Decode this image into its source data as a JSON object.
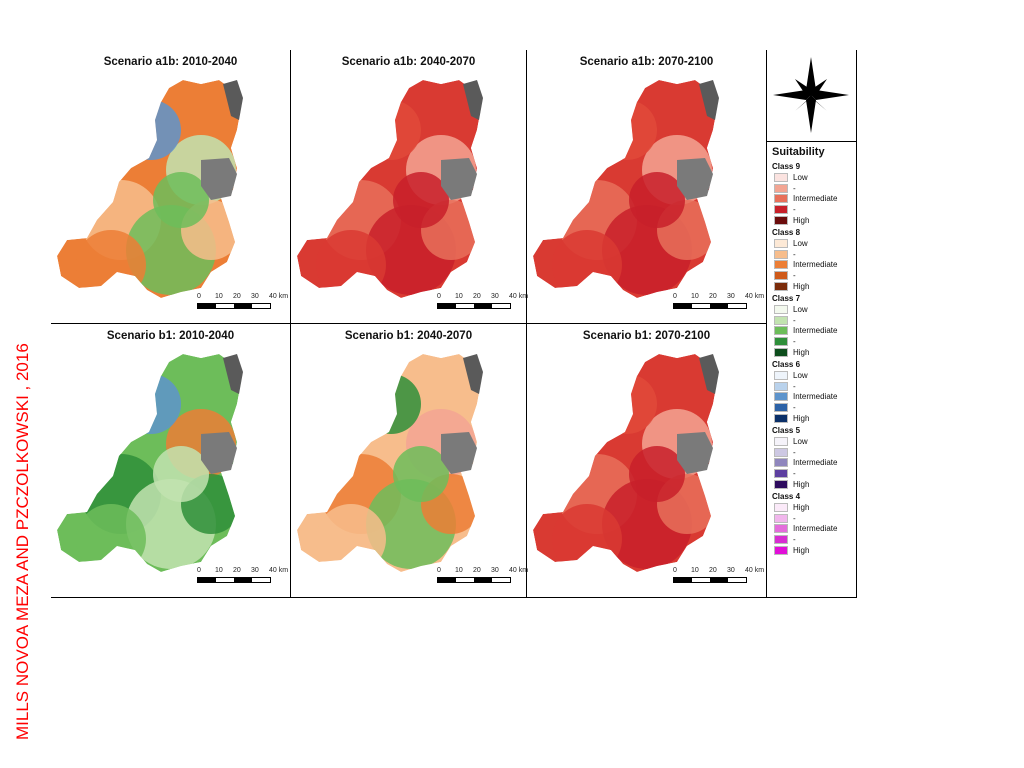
{
  "caption": "MILLS NOVOA MEZA AND PZCZOLKOWSKI , 2016",
  "panels": [
    {
      "title": "Scenario a1b: 2010-2040",
      "palette": "a1b_early"
    },
    {
      "title": "Scenario a1b: 2040-2070",
      "palette": "red"
    },
    {
      "title": "Scenario a1b: 2070-2100",
      "palette": "red"
    },
    {
      "title": "Scenario b1: 2010-2040",
      "palette": "b1_early"
    },
    {
      "title": "Scenario b1: 2040-2070",
      "palette": "b1_mid"
    },
    {
      "title": "Scenario b1: 2070-2100",
      "palette": "red"
    }
  ],
  "scale_bar": {
    "ticks": [
      "0",
      "10",
      "20",
      "30",
      "40 km"
    ]
  },
  "legend": {
    "title": "Suitability",
    "classes": [
      {
        "name": "Class 9",
        "items": [
          {
            "label": "Low",
            "color": "#fbe3e0"
          },
          {
            "label": "-",
            "color": "#f3a593"
          },
          {
            "label": "Intermediate",
            "color": "#e8705a"
          },
          {
            "label": "-",
            "color": "#c8202a"
          },
          {
            "label": "High",
            "color": "#6b0c0c"
          }
        ]
      },
      {
        "name": "Class 8",
        "items": [
          {
            "label": "Low",
            "color": "#fde9d6"
          },
          {
            "label": "-",
            "color": "#f7bd8c"
          },
          {
            "label": "Intermediate",
            "color": "#ec7e36"
          },
          {
            "label": "-",
            "color": "#cf5a1a"
          },
          {
            "label": "High",
            "color": "#7a2b0a"
          }
        ]
      },
      {
        "name": "Class 7",
        "items": [
          {
            "label": "Low",
            "color": "#f3f9ee"
          },
          {
            "label": "-",
            "color": "#c2e3b0"
          },
          {
            "label": "Intermediate",
            "color": "#6dbd5a"
          },
          {
            "label": "-",
            "color": "#2f8f3a"
          },
          {
            "label": "High",
            "color": "#0d4d1c"
          }
        ]
      },
      {
        "name": "Class 6",
        "items": [
          {
            "label": "Low",
            "color": "#eef4fb"
          },
          {
            "label": "-",
            "color": "#b9d2ec"
          },
          {
            "label": "Intermediate",
            "color": "#5e94cc"
          },
          {
            "label": "-",
            "color": "#2c62a7"
          },
          {
            "label": "High",
            "color": "#0a2f68"
          }
        ]
      },
      {
        "name": "Class 5",
        "items": [
          {
            "label": "Low",
            "color": "#f5f3fa"
          },
          {
            "label": "-",
            "color": "#cdc8e3"
          },
          {
            "label": "Intermediate",
            "color": "#8f86bd"
          },
          {
            "label": "-",
            "color": "#5d3fa0"
          },
          {
            "label": "High",
            "color": "#2d0b5e"
          }
        ]
      },
      {
        "name": "Class 4",
        "items": [
          {
            "label": "High",
            "color": "#fbeaf9"
          },
          {
            "label": "-",
            "color": "#f1b6ec"
          },
          {
            "label": "Intermediate",
            "color": "#e46ddb"
          },
          {
            "label": "-",
            "color": "#d72ed1"
          },
          {
            "label": "High",
            "color": "#e10fd8"
          }
        ]
      }
    ]
  },
  "colors": {
    "urban": "#7a7a7a",
    "mountains": "#5a5a5a"
  }
}
